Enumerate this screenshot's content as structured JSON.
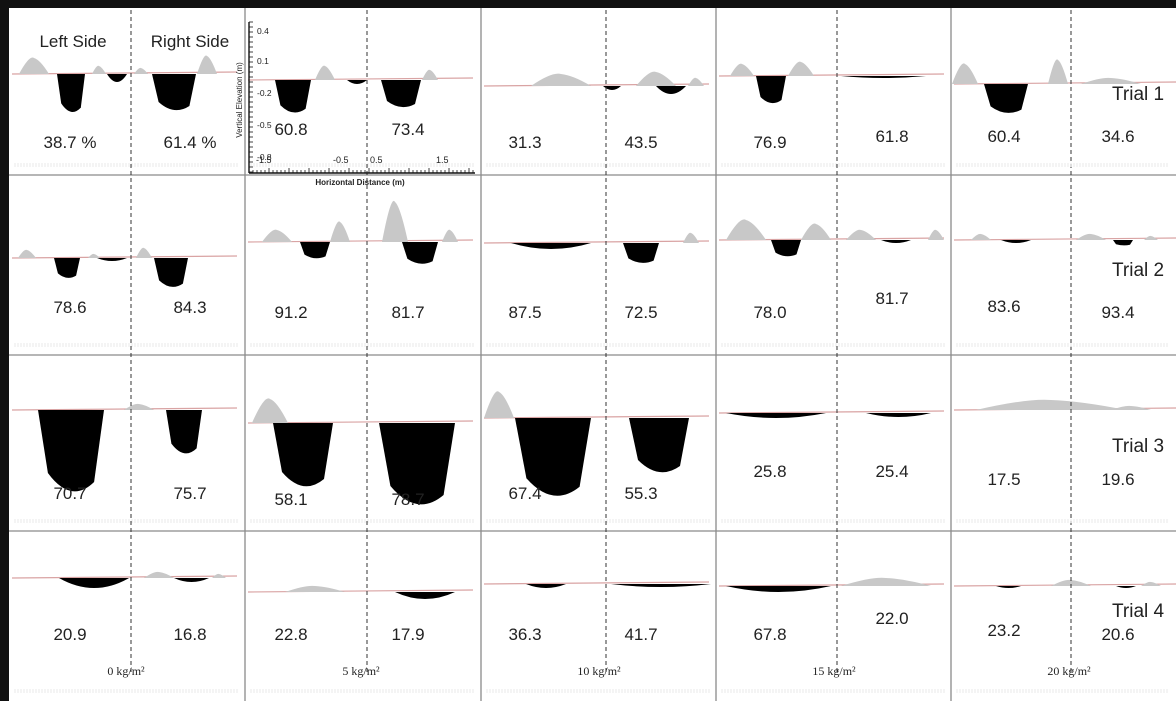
{
  "chart_data": {
    "type": "area",
    "header": {
      "left_side": "Left Side",
      "right_side": "Right Side"
    },
    "inset_axes": {
      "ylabel": "Vertical Elevation (m)",
      "xlabel": "Horizontal Distance (m)",
      "yticks": [
        "0.4",
        "0.1",
        "-0.2",
        "-0.5",
        "-0.8"
      ],
      "xticks": [
        "-1.5",
        "-0.5",
        "0.5",
        "1.5"
      ]
    },
    "columns": [
      "0 kg/m²",
      "5 kg/m²",
      "10 kg/m²",
      "15 kg/m²",
      "20 kg/m²"
    ],
    "rows": [
      "Trial 1",
      "Trial 2",
      "Trial 3",
      "Trial 4"
    ],
    "values": [
      [
        [
          "38.7 %",
          "61.4 %"
        ],
        [
          "60.8",
          "73.4"
        ],
        [
          "31.3",
          "43.5"
        ],
        [
          "76.9",
          "61.8"
        ],
        [
          "60.4",
          "34.6"
        ]
      ],
      [
        [
          "78.6",
          "84.3"
        ],
        [
          "91.2",
          "81.7"
        ],
        [
          "87.5",
          "72.5"
        ],
        [
          "78.0",
          "81.7"
        ],
        [
          "83.6",
          "93.4"
        ]
      ],
      [
        [
          "70.7",
          "75.7"
        ],
        [
          "58.1",
          "78.7"
        ],
        [
          "67.4",
          "55.3"
        ],
        [
          "25.8",
          "25.4"
        ],
        [
          "17.5",
          "19.6"
        ]
      ],
      [
        [
          "20.9",
          "16.8"
        ],
        [
          "22.8",
          "17.9"
        ],
        [
          "36.3",
          "41.7"
        ],
        [
          "67.8",
          "22.0"
        ],
        [
          "23.2",
          "20.6"
        ]
      ]
    ]
  }
}
